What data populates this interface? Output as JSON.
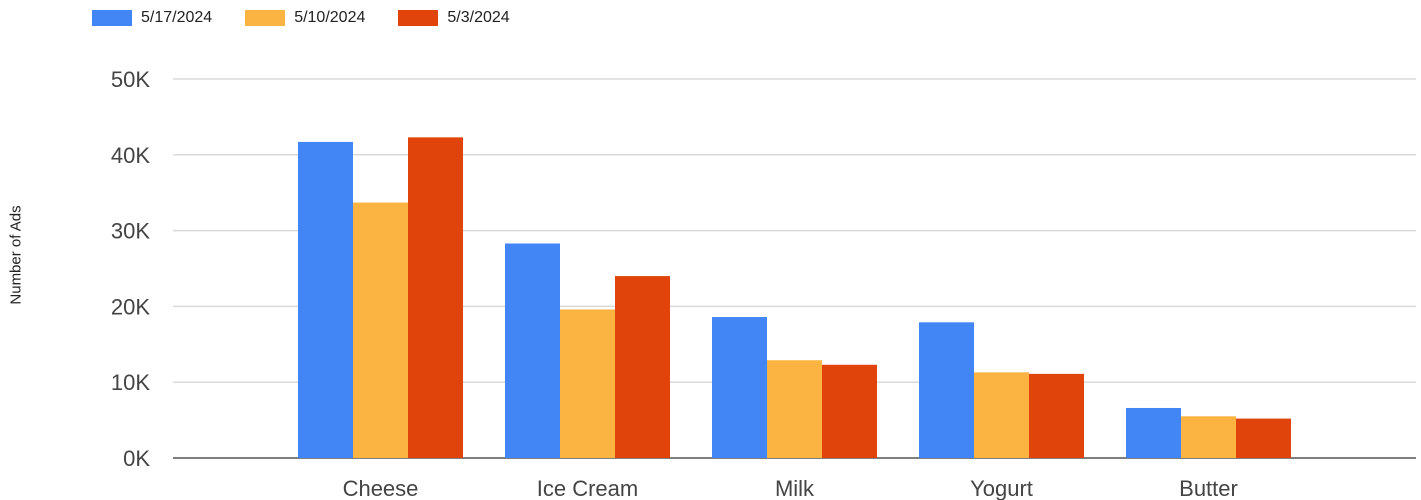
{
  "chart_data": {
    "type": "bar",
    "title": "",
    "xlabel": "",
    "ylabel": "Number of Ads",
    "categories": [
      "Cheese",
      "Ice Cream",
      "Milk",
      "Yogurt",
      "Butter"
    ],
    "series": [
      {
        "name": "5/17/2024",
        "color": "#4285F4",
        "values": [
          41700,
          28300,
          18600,
          17900,
          6600
        ]
      },
      {
        "name": "5/10/2024",
        "color": "#FBB442",
        "values": [
          33700,
          19600,
          12900,
          11300,
          5500
        ]
      },
      {
        "name": "5/3/2024",
        "color": "#E0440A",
        "values": [
          42300,
          24000,
          12300,
          11100,
          5200
        ]
      }
    ],
    "ylim": [
      0,
      50000
    ],
    "yticks": [
      0,
      10000,
      20000,
      30000,
      40000,
      50000
    ],
    "ytick_labels": [
      "0K",
      "10K",
      "20K",
      "30K",
      "40K",
      "50K"
    ],
    "grid": true,
    "legend_position": "top-left"
  }
}
